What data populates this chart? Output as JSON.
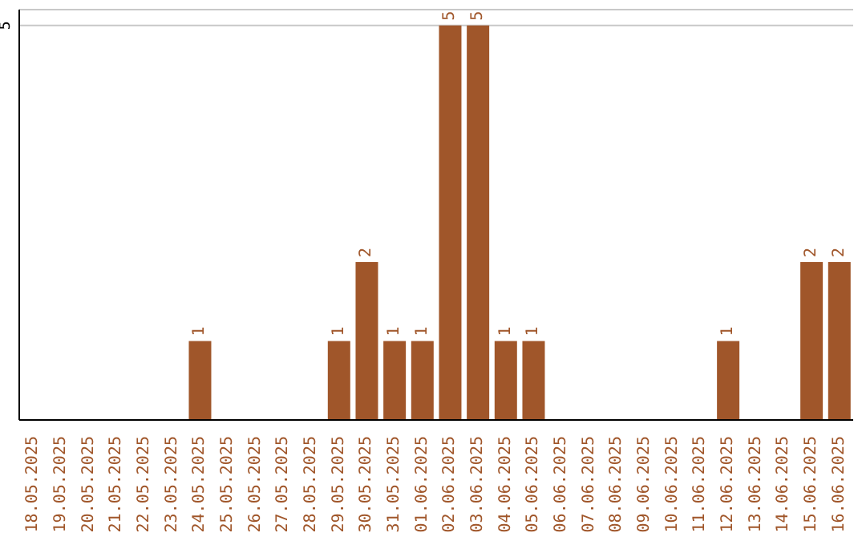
{
  "chart_data": {
    "type": "bar",
    "categories": [
      "18.05.2025",
      "19.05.2025",
      "20.05.2025",
      "21.05.2025",
      "22.05.2025",
      "23.05.2025",
      "24.05.2025",
      "25.05.2025",
      "26.05.2025",
      "27.05.2025",
      "28.05.2025",
      "29.05.2025",
      "30.05.2025",
      "31.05.2025",
      "01.06.2025",
      "02.06.2025",
      "03.06.2025",
      "04.06.2025",
      "05.06.2025",
      "06.06.2025",
      "07.06.2025",
      "08.06.2025",
      "09.06.2025",
      "10.06.2025",
      "11.06.2025",
      "12.06.2025",
      "13.06.2025",
      "14.06.2025",
      "15.06.2025",
      "16.06.2025"
    ],
    "values": [
      0,
      0,
      0,
      0,
      0,
      0,
      1,
      0,
      0,
      0,
      0,
      1,
      2,
      1,
      1,
      5,
      5,
      1,
      1,
      0,
      0,
      0,
      0,
      0,
      0,
      1,
      0,
      0,
      2,
      2
    ],
    "value_labels": [
      null,
      null,
      null,
      null,
      null,
      null,
      "1",
      null,
      null,
      null,
      null,
      "1",
      "2",
      "1",
      "1",
      "5",
      "5",
      "1",
      "1",
      null,
      null,
      null,
      null,
      null,
      null,
      "1",
      null,
      null,
      "2",
      "2"
    ],
    "color": "#a0562a",
    "ylim": [
      0,
      5.2
    ],
    "yticks": [
      5
    ],
    "grid": "y"
  }
}
